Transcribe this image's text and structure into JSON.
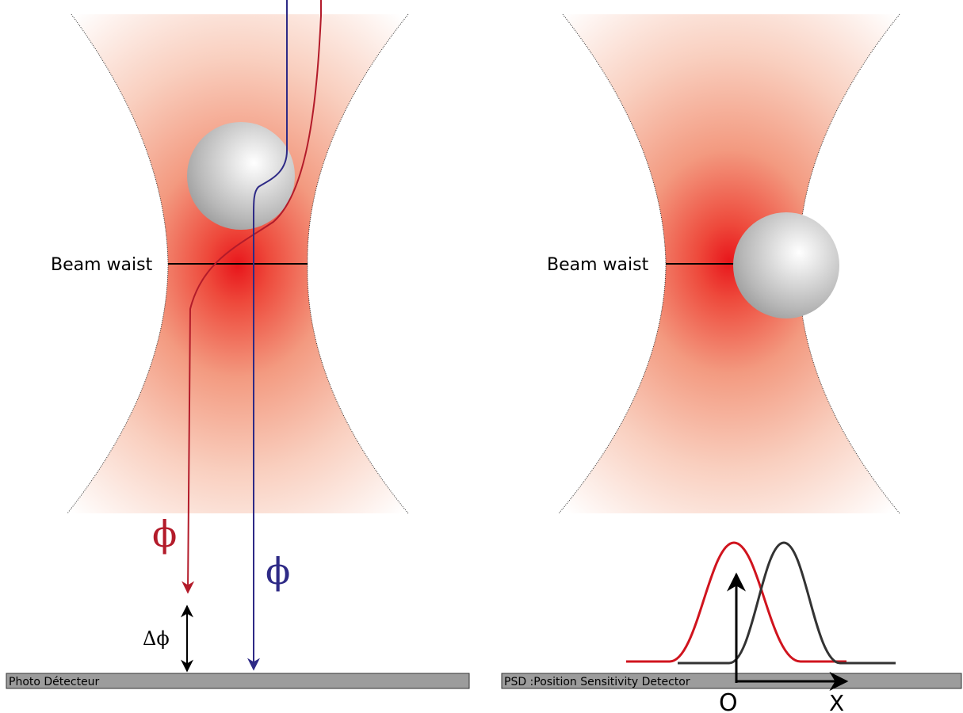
{
  "left_panel": {
    "waist_label": "Beam waist",
    "phi_red_label": "ϕ",
    "phi_blue_label": "ϕ",
    "delta_phi_label": "Δϕ",
    "detector_label": "Photo Détecteur"
  },
  "right_panel": {
    "waist_label": "Beam waist",
    "detector_label": "PSD  :Position Sensitivity Detector",
    "origin_label": "O",
    "x_label": "X"
  },
  "colors": {
    "beam_core": "#e8161b",
    "ray_red": "#b31b2a",
    "ray_blue": "#2e2a86",
    "curve_red": "#d0141e",
    "curve_dark": "#333333",
    "detector_fill": "#9c9c9c"
  }
}
